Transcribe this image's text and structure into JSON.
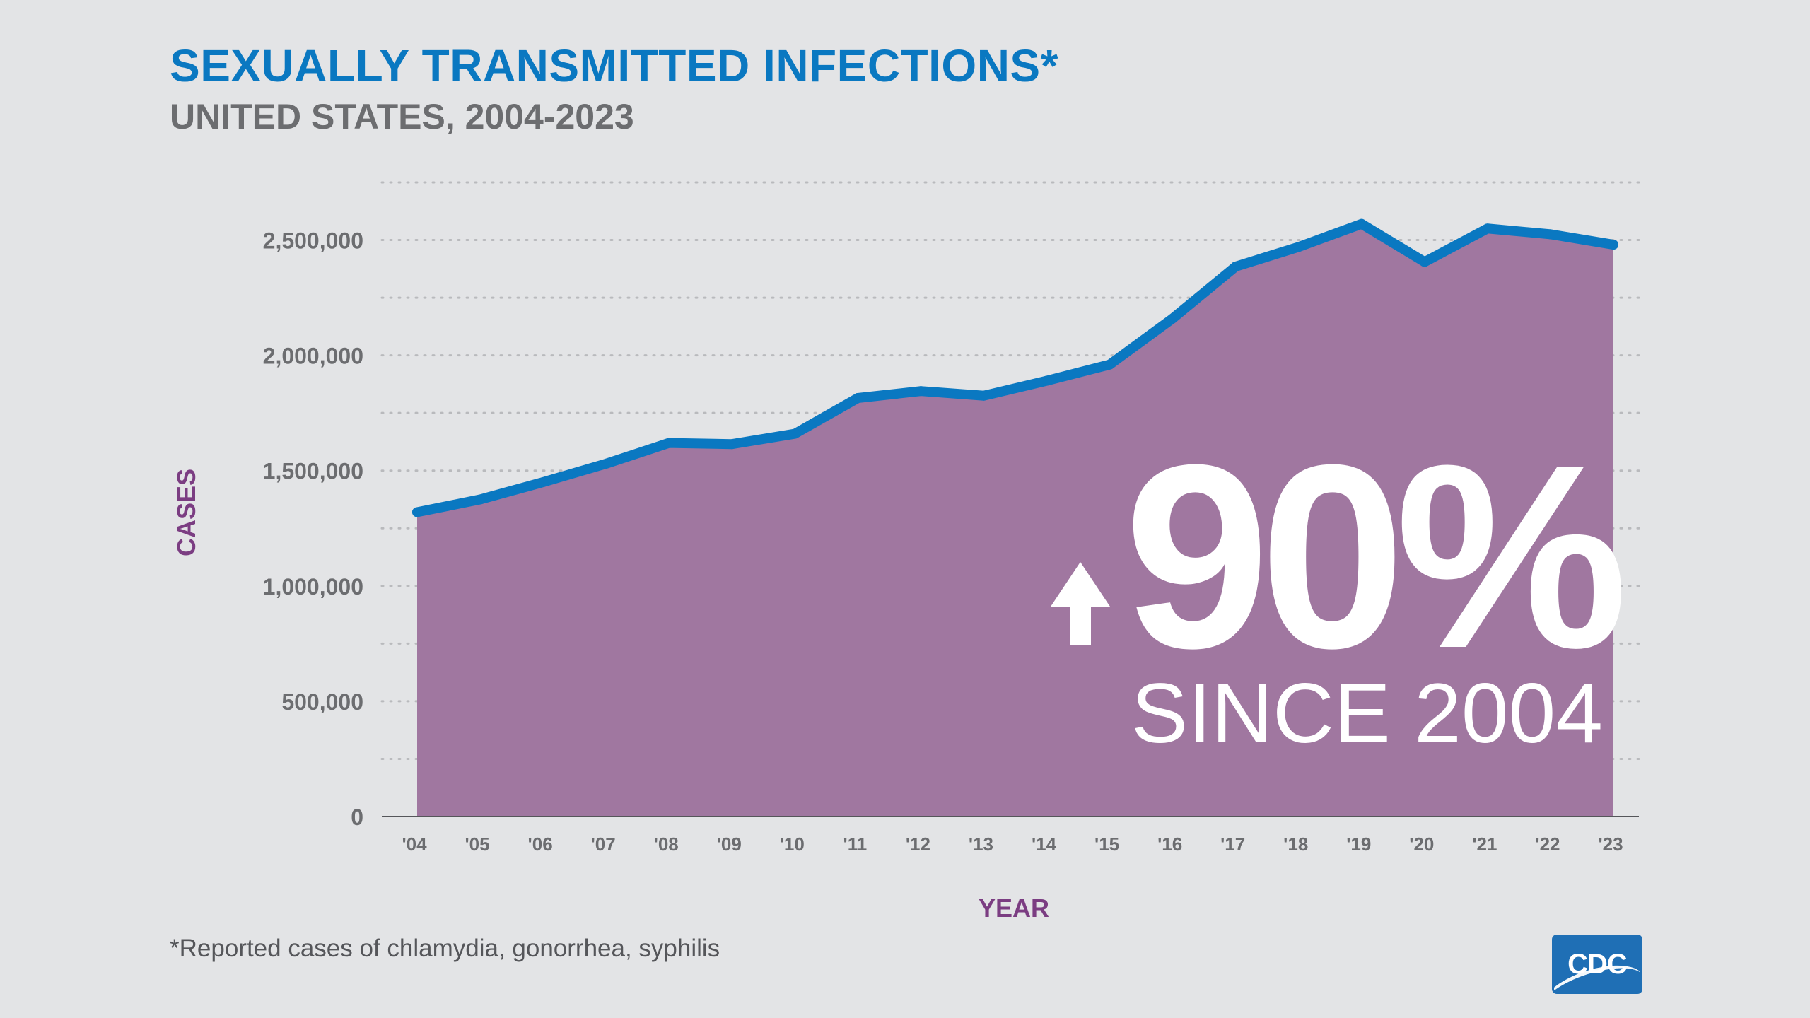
{
  "header": {
    "title": "SEXUALLY TRANSMITTED INFECTIONS*",
    "subtitle": "UNITED STATES, 2004-2023"
  },
  "callout": {
    "value": "90%",
    "caption": "SINCE 2004",
    "icon": "arrow-up-icon"
  },
  "footnote": "*Reported cases of chlamydia, gonorrhea, syphilis",
  "logo": {
    "text": "CDC"
  },
  "colors": {
    "background": "#e3e4e6",
    "title": "#0a78c1",
    "subtitle": "#6c6d70",
    "line": "#0a78c1",
    "area": "#a077a0",
    "axis_label": "#7b3d82",
    "tick_label": "#6c6d70",
    "callout": "#ffffff"
  },
  "chart_data": {
    "type": "area",
    "title": "SEXUALLY TRANSMITTED INFECTIONS*",
    "subtitle": "UNITED STATES, 2004-2023",
    "xlabel": "YEAR",
    "ylabel": "CASES",
    "categories": [
      "'04",
      "'05",
      "'06",
      "'07",
      "'08",
      "'09",
      "'10",
      "'11",
      "'12",
      "'13",
      "'14",
      "'15",
      "'16",
      "'17",
      "'18",
      "'19",
      "'20",
      "'21",
      "'22",
      "'23"
    ],
    "values": [
      1320000,
      1375000,
      1450000,
      1530000,
      1620000,
      1615000,
      1660000,
      1815000,
      1845000,
      1825000,
      1890000,
      1960000,
      2160000,
      2385000,
      2470000,
      2570000,
      2405000,
      2550000,
      2525000,
      2480000
    ],
    "yticks": [
      0,
      500000,
      1000000,
      1500000,
      2000000,
      2500000
    ],
    "ytick_labels": [
      "0",
      "500,000",
      "1,000,000",
      "1,500,000",
      "2,000,000",
      "2,500,000"
    ],
    "ylim": [
      0,
      2750000
    ],
    "grid": "dotted horizontal",
    "legend": "none"
  }
}
